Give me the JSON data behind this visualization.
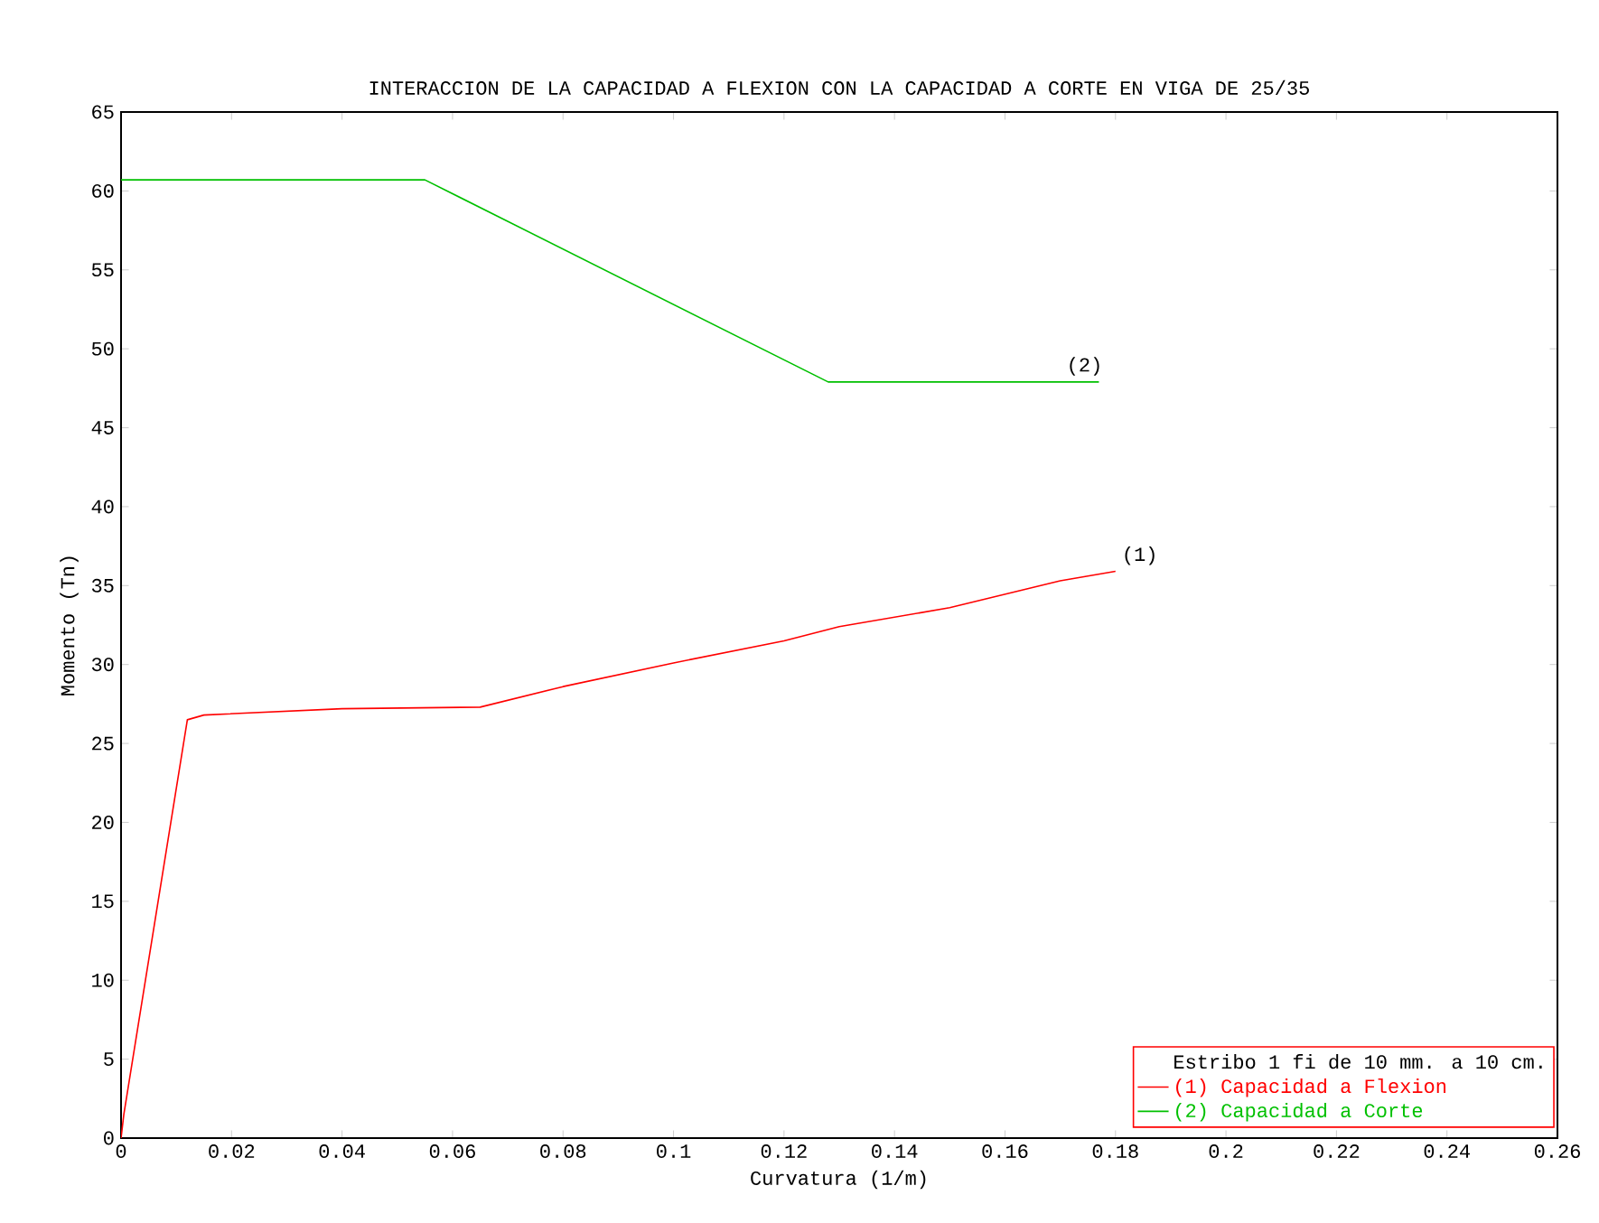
{
  "chart_data": {
    "type": "line",
    "title": "INTERACCION DE LA CAPACIDAD A FLEXION CON LA CAPACIDAD A CORTE EN VIGA DE 25/35",
    "xlabel": "Curvatura (1/m)",
    "ylabel": "Momento (Tn)",
    "legend_title": "Estribo 1 fi de 10 mm. a 10 cm.",
    "legend": "bottom right",
    "grid": false,
    "marker": "none",
    "line_style": "solid",
    "xlim": [
      0,
      0.26
    ],
    "xticks": [
      0,
      0.02,
      0.04,
      0.06,
      0.08,
      0.1,
      0.12,
      0.14,
      0.16,
      0.18,
      0.2,
      0.22,
      0.24,
      0.26
    ],
    "ylim": [
      0,
      65
    ],
    "yticks": [
      0,
      5,
      10,
      15,
      20,
      25,
      30,
      35,
      40,
      45,
      50,
      55,
      60,
      65
    ],
    "series": [
      {
        "name": "(1) Capacidad a Flexion",
        "color": "#ff0000",
        "x": [
          0,
          0.0005,
          0.012,
          0.015,
          0.04,
          0.065,
          0.08,
          0.1,
          0.12,
          0.13,
          0.15,
          0.17,
          0.18
        ],
        "values": [
          0,
          1.5,
          26.5,
          26.8,
          27.2,
          27.3,
          28.6,
          30.1,
          31.5,
          32.4,
          33.6,
          35.3,
          35.9
        ]
      },
      {
        "name": "(2) Capacidad a Corte",
        "color": "#00c000",
        "x": [
          0,
          0.055,
          0.128,
          0.177
        ],
        "values": [
          60.7,
          60.7,
          47.9,
          47.9
        ]
      }
    ],
    "annotations": [
      {
        "text": "(1)",
        "x": 0.18,
        "y": 35.9
      },
      {
        "text": "(2)",
        "x": 0.17,
        "y": 47.9
      }
    ]
  }
}
